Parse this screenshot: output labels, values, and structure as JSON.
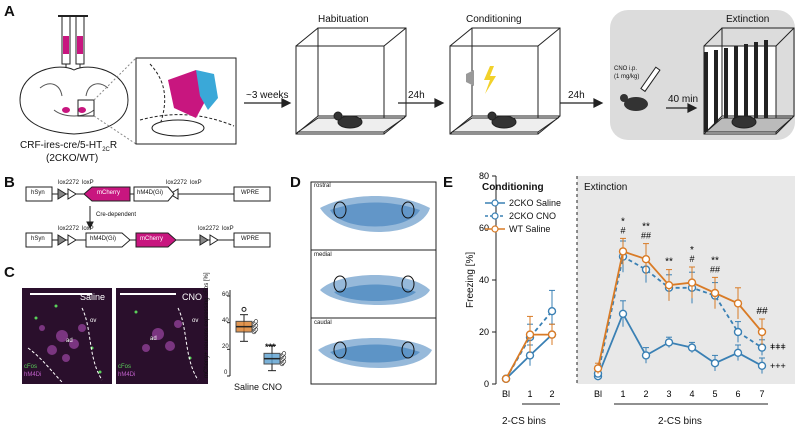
{
  "panel_labels": {
    "a": "A",
    "b": "B",
    "c": "C",
    "d": "D",
    "e": "E"
  },
  "panel_a": {
    "mouse_line": "CRF-ires-cre/5-HT",
    "mouse_line_sub": "2C",
    "mouse_line_r": "R",
    "genotype": "(2CKO/WT)",
    "weeks": "~3 weeks",
    "delay1": "24h",
    "delay2": "24h",
    "stages": [
      "Habituation",
      "Conditioning",
      "Extinction"
    ],
    "cno_dose": "CNO i.p.",
    "cno_mg": "(1 mg/kg)",
    "wait": "40 min",
    "colors": {
      "magenta": "#c8167f",
      "cyan": "#3aa8d8",
      "grey": "#dcdcdc"
    }
  },
  "panel_b": {
    "hsyn": "hSyn",
    "wpre": "WPRE",
    "mcherry": "mCherry",
    "hm4d": "hM4D(Gi)",
    "lox_a": "lox2272",
    "lox_b": "loxP",
    "cre_dependent": "Cre-dependent"
  },
  "panel_c": {
    "saline": "Saline",
    "cno": "CNO",
    "ov": "ov",
    "ad": "ad",
    "cfos": "cFos",
    "hm4di": "hM4Di",
    "ylabel": "mCherry+ neurons expressing cFos [%]",
    "yticks": [
      "0",
      "20",
      "40",
      "60"
    ],
    "significance": "***",
    "groups": [
      "Saline",
      "CNO"
    ],
    "box_stats": [
      {
        "group": "Saline",
        "median": 37,
        "q1": 33,
        "q3": 41,
        "min": 26,
        "max": 46,
        "outlier": 50
      },
      {
        "group": "CNO",
        "median": 13,
        "q1": 9,
        "q3": 17,
        "min": 4,
        "max": 23
      }
    ]
  },
  "panel_d": {
    "sections": [
      "rostral",
      "medial",
      "caudal"
    ]
  },
  "chart_data": {
    "type": "line",
    "ylabel": "Freezing [%]",
    "ylim": [
      0,
      80
    ],
    "yticks": [
      0,
      20,
      40,
      60,
      80
    ],
    "conditioning_label": "Conditioning",
    "extinction_label": "Extinction",
    "conditioning_x": [
      "Bl",
      "1",
      "2"
    ],
    "extinction_x": [
      "Bl",
      "1",
      "2",
      "3",
      "4",
      "5",
      "6",
      "7"
    ],
    "bins_label": "2-CS bins",
    "legend_position": "top-left",
    "series": [
      {
        "name": "2CKO Saline",
        "color": "#3a80b4",
        "dashed": false,
        "conditioning": [
          2,
          11,
          19
        ],
        "conditioning_err": [
          1,
          4,
          4
        ],
        "extinction": [
          3,
          27,
          11,
          16,
          14,
          8,
          12,
          7
        ],
        "extinction_err": [
          1,
          5,
          3,
          2,
          2,
          3,
          3,
          3
        ]
      },
      {
        "name": "2CKO CNO",
        "color": "#3a80b4",
        "dashed": true,
        "conditioning": [
          2,
          18,
          28
        ],
        "conditioning_err": [
          1,
          5,
          8
        ],
        "extinction": [
          4,
          49,
          44,
          37,
          37,
          34,
          20,
          14
        ],
        "extinction_err": [
          1,
          6,
          5,
          5,
          6,
          5,
          4,
          3
        ]
      },
      {
        "name": "WT Saline",
        "color": "#d97b26",
        "dashed": false,
        "conditioning": [
          2,
          19,
          19
        ],
        "conditioning_err": [
          1,
          7,
          4
        ],
        "extinction": [
          6,
          51,
          48,
          38,
          39,
          35,
          31,
          20
        ],
        "extinction_err": [
          2,
          5,
          6,
          6,
          6,
          6,
          6,
          5
        ]
      }
    ],
    "significance": [
      {
        "bin": "1",
        "top": "*",
        "bottom": "#"
      },
      {
        "bin": "2",
        "top": "**",
        "bottom": "##"
      },
      {
        "bin": "3",
        "top": "**",
        "bottom": ""
      },
      {
        "bin": "4",
        "top": "*",
        "bottom": "#"
      },
      {
        "bin": "5",
        "top": "**",
        "bottom": "##"
      },
      {
        "bin": "7",
        "top": "##",
        "bottom": ""
      }
    ],
    "plus_marks": [
      "+++",
      "+++",
      "+++"
    ]
  }
}
